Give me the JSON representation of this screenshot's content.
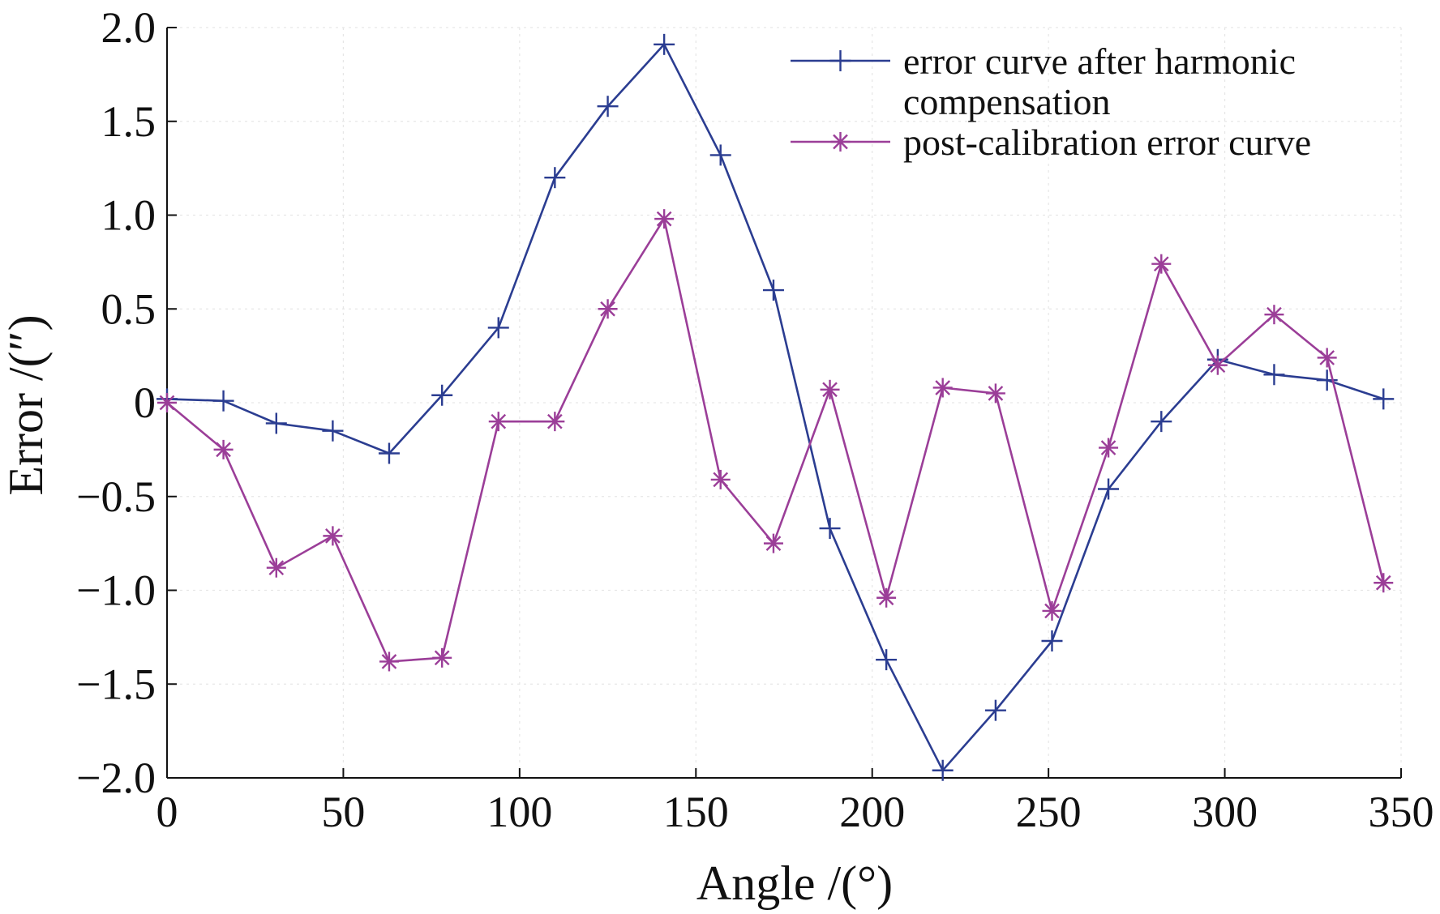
{
  "chart_data": {
    "type": "line",
    "title": "",
    "xlabel": "Angle /(°)",
    "ylabel": "Error /(″)",
    "xlim": [
      0,
      350
    ],
    "ylim": [
      -2.0,
      2.0
    ],
    "x_ticks": [
      0,
      50,
      100,
      150,
      200,
      250,
      300,
      350
    ],
    "x_tick_labels": [
      "0",
      "50",
      "100",
      "150",
      "200",
      "250",
      "300",
      "350"
    ],
    "y_ticks": [
      2.0,
      1.5,
      1.0,
      0.5,
      0,
      -0.5,
      -1.0,
      -1.5,
      -2.0
    ],
    "y_tick_labels": [
      "2.0",
      "1.5",
      "1.0",
      "0.5",
      "0",
      "−0.5",
      "−1.0",
      "−1.5",
      "−2.0"
    ],
    "grid": true,
    "legend_position": "top-right",
    "series": [
      {
        "name": "error curve after harmonic compensation",
        "legend_lines": [
          "error curve after harmonic",
          "compensation"
        ],
        "color": "#2b3d91",
        "marker": "plus",
        "x": [
          0,
          16,
          31,
          47,
          63,
          78,
          94,
          110,
          125,
          141,
          157,
          172,
          188,
          204,
          220,
          235,
          251,
          267,
          282,
          298,
          314,
          329,
          345
        ],
        "values": [
          0.02,
          0.01,
          -0.11,
          -0.15,
          -0.27,
          0.04,
          0.4,
          1.2,
          1.58,
          1.91,
          1.32,
          0.6,
          -0.67,
          -1.37,
          -1.96,
          -1.64,
          -1.27,
          -0.46,
          -0.1,
          0.23,
          0.15,
          0.12,
          0.02
        ]
      },
      {
        "name": "post-calibration error curve",
        "legend_lines": [
          "post-calibration error curve"
        ],
        "color": "#9b3e98",
        "marker": "asterisk",
        "x": [
          0,
          16,
          31,
          47,
          63,
          78,
          94,
          110,
          125,
          141,
          157,
          172,
          188,
          204,
          220,
          235,
          251,
          267,
          282,
          298,
          314,
          329,
          345
        ],
        "values": [
          0.0,
          -0.25,
          -0.88,
          -0.71,
          -1.38,
          -1.36,
          -0.1,
          -0.1,
          0.5,
          0.98,
          -0.41,
          -0.75,
          0.07,
          -1.04,
          0.08,
          0.05,
          -1.11,
          -0.24,
          0.74,
          0.2,
          0.47,
          0.24,
          -0.96
        ]
      }
    ]
  }
}
